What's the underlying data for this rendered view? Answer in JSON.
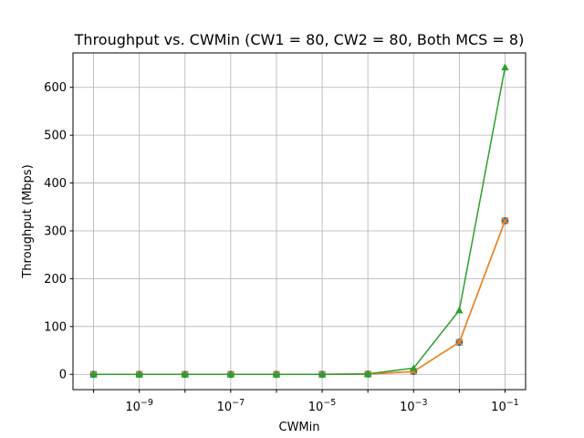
{
  "chart_data": {
    "type": "line",
    "title": "Throughput vs. CWMin (CW1 = 80, CW2 = 80, Both MCS = 8)",
    "xlabel": "CWMin",
    "ylabel": "Throughput (Mbps)",
    "xscale": "log",
    "grid": true,
    "x": [
      1e-10,
      1e-09,
      1e-08,
      1e-07,
      1e-06,
      1e-05,
      0.0001,
      0.001,
      0.01,
      0.1
    ],
    "x_ticks": [
      {
        "base": "10",
        "exp": "−9"
      },
      {
        "base": "10",
        "exp": "−7"
      },
      {
        "base": "10",
        "exp": "−5"
      },
      {
        "base": "10",
        "exp": "−3"
      },
      {
        "base": "10",
        "exp": "−1"
      }
    ],
    "y_ticks": [
      "0",
      "100",
      "200",
      "300",
      "400",
      "500",
      "600"
    ],
    "ylim": [
      -32,
      672
    ],
    "series": [
      {
        "color": "#1f77b4",
        "marker": "circle",
        "values": [
          0,
          0,
          0,
          0,
          0,
          0,
          0.5,
          6,
          67,
          321
        ]
      },
      {
        "color": "#ff7f0e",
        "marker": "x",
        "values": [
          0,
          0,
          0,
          0,
          0,
          0,
          0.5,
          6,
          67,
          321
        ]
      },
      {
        "color": "#2ca02c",
        "marker": "triangle",
        "values": [
          0,
          0,
          0,
          0,
          0,
          0,
          1,
          13,
          134,
          642
        ]
      }
    ]
  }
}
